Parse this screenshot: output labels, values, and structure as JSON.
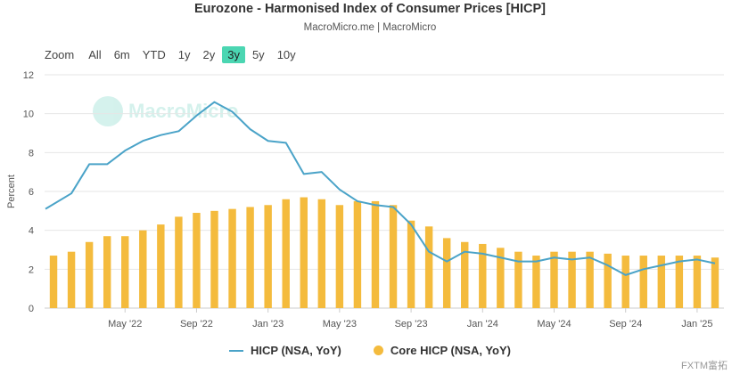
{
  "title": "Eurozone - Harmonised Index of Consumer Prices [HICP]",
  "subtitle": "MacroMicro.me | MacroMicro",
  "range_selector": {
    "zoom_label": "Zoom",
    "buttons": [
      "All",
      "6m",
      "YTD",
      "1y",
      "2y",
      "3y",
      "5y",
      "10y"
    ],
    "active": "3y",
    "active_color": "#4bd6b2"
  },
  "watermark_logo": "MacroMicro",
  "corner_watermark": "FXTM富拓",
  "legend": {
    "hicp": "HICP (NSA, YoY)",
    "core": "Core HICP (NSA, YoY)"
  },
  "chart_data": {
    "type": "bar+line",
    "title": "Eurozone - Harmonised Index of Consumer Prices [HICP]",
    "ylabel": "Percent",
    "ylim": [
      0,
      12
    ],
    "yticks": [
      0,
      2,
      4,
      6,
      8,
      10,
      12
    ],
    "xtick_labels": [
      "May '22",
      "Sep '22",
      "Jan '23",
      "May '23",
      "Sep '23",
      "Jan '24",
      "May '24",
      "Sep '24",
      "Jan '25"
    ],
    "months": [
      "2022-01",
      "2022-02",
      "2022-03",
      "2022-04",
      "2022-05",
      "2022-06",
      "2022-07",
      "2022-08",
      "2022-09",
      "2022-10",
      "2022-11",
      "2022-12",
      "2023-01",
      "2023-02",
      "2023-03",
      "2023-04",
      "2023-05",
      "2023-06",
      "2023-07",
      "2023-08",
      "2023-09",
      "2023-10",
      "2023-11",
      "2023-12",
      "2024-01",
      "2024-02",
      "2024-03",
      "2024-04",
      "2024-05",
      "2024-06",
      "2024-07",
      "2024-08",
      "2024-09",
      "2024-10",
      "2024-11",
      "2024-12",
      "2025-01",
      "2025-02"
    ],
    "series": [
      {
        "name": "HICP (NSA, YoY)",
        "type": "line",
        "color": "#4aa3c8",
        "values": [
          5.1,
          5.9,
          7.4,
          7.4,
          8.1,
          8.6,
          8.9,
          9.1,
          9.9,
          10.6,
          10.1,
          9.2,
          8.6,
          8.5,
          6.9,
          7.0,
          6.1,
          5.5,
          5.3,
          5.2,
          4.3,
          2.9,
          2.4,
          2.9,
          2.8,
          2.6,
          2.4,
          2.4,
          2.6,
          2.5,
          2.6,
          2.2,
          1.7,
          2.0,
          2.2,
          2.4,
          2.5,
          2.3
        ]
      },
      {
        "name": "Core HICP (NSA, YoY)",
        "type": "bar",
        "color": "#f4bb3d",
        "values": [
          2.7,
          2.9,
          3.4,
          3.7,
          3.7,
          4.0,
          4.3,
          4.7,
          4.9,
          5.0,
          5.1,
          5.2,
          5.3,
          5.6,
          5.7,
          5.6,
          5.3,
          5.5,
          5.5,
          5.3,
          4.5,
          4.2,
          3.6,
          3.4,
          3.3,
          3.1,
          2.9,
          2.7,
          2.9,
          2.9,
          2.9,
          2.8,
          2.7,
          2.7,
          2.7,
          2.7,
          2.7,
          2.6
        ]
      }
    ],
    "grid": true,
    "legend_position": "bottom"
  }
}
